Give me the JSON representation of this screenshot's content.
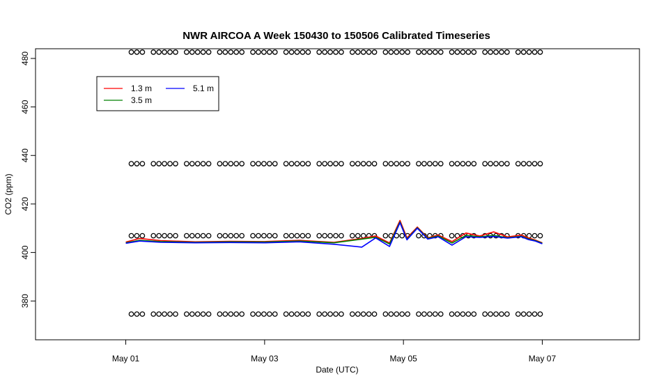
{
  "chart_data": {
    "type": "line",
    "title": "NWR AIRCOA A  Week 150430 to 150506  Calibrated Timeseries",
    "xlabel": "Date (UTC)",
    "ylabel": "CO2 (ppm)",
    "x_unit": "days from May 01 00:00 UTC",
    "xlim": [
      -1.3,
      7.4
    ],
    "ylim": [
      364,
      484
    ],
    "x_ticks": [
      {
        "value": 0,
        "label": "May 01"
      },
      {
        "value": 2,
        "label": "May 03"
      },
      {
        "value": 4,
        "label": "May 05"
      },
      {
        "value": 6,
        "label": "May 07"
      }
    ],
    "y_ticks": [
      {
        "value": 380,
        "label": "380"
      },
      {
        "value": 400,
        "label": "400"
      },
      {
        "value": 420,
        "label": "420"
      },
      {
        "value": 440,
        "label": "440"
      },
      {
        "value": 460,
        "label": "460"
      },
      {
        "value": 480,
        "label": "480"
      }
    ],
    "grid": false,
    "legend": {
      "position": "top-left",
      "columns": 2
    },
    "series": [
      {
        "name": "1.3 m",
        "color": "#ff0000",
        "x": [
          0.0,
          0.2,
          0.5,
          1.0,
          1.5,
          2.0,
          2.5,
          3.0,
          3.4,
          3.6,
          3.8,
          3.95,
          4.05,
          4.2,
          4.35,
          4.5,
          4.7,
          4.9,
          5.1,
          5.3,
          5.5,
          5.7,
          5.8,
          5.9,
          6.0
        ],
        "values": [
          404.3,
          405.8,
          404.9,
          404.4,
          404.6,
          404.5,
          405.0,
          404.2,
          405.8,
          406.8,
          403.9,
          413.2,
          406.0,
          410.5,
          406.0,
          407.2,
          404.5,
          408.0,
          406.8,
          408.5,
          406.4,
          407.2,
          406.0,
          405.1,
          404.0
        ]
      },
      {
        "name": "3.5 m",
        "color": "#008000",
        "x": [
          0.0,
          0.2,
          0.5,
          1.0,
          1.5,
          2.0,
          2.5,
          3.0,
          3.4,
          3.6,
          3.8,
          3.95,
          4.05,
          4.2,
          4.35,
          4.5,
          4.7,
          4.9,
          5.1,
          5.3,
          5.5,
          5.7,
          5.8,
          5.9,
          6.0
        ],
        "values": [
          404.0,
          405.0,
          404.5,
          404.2,
          404.4,
          404.3,
          404.7,
          404.0,
          405.5,
          406.3,
          403.5,
          412.6,
          405.5,
          410.2,
          405.8,
          406.8,
          403.9,
          407.0,
          406.5,
          407.0,
          406.1,
          406.7,
          405.6,
          404.9,
          403.8
        ]
      },
      {
        "name": "5.1 m",
        "color": "#0000ff",
        "x": [
          0.0,
          0.2,
          0.5,
          1.0,
          1.5,
          2.0,
          2.5,
          3.0,
          3.4,
          3.6,
          3.8,
          3.95,
          4.05,
          4.2,
          4.35,
          4.5,
          4.7,
          4.9,
          5.1,
          5.3,
          5.5,
          5.7,
          5.8,
          5.9,
          6.0
        ],
        "values": [
          403.8,
          404.7,
          404.2,
          404.0,
          404.1,
          404.0,
          404.4,
          403.4,
          402.2,
          406.0,
          402.5,
          412.3,
          405.2,
          410.0,
          405.5,
          406.5,
          403.0,
          406.5,
          406.2,
          406.6,
          405.9,
          406.5,
          405.3,
          404.7,
          403.6
        ]
      }
    ],
    "calibration_markers": {
      "levels": [
        482.6,
        436.6,
        406.9,
        374.6
      ],
      "x_start": 0.08,
      "x_end": 5.97,
      "count": 75,
      "marker": "open-circle",
      "color": "#000000"
    }
  }
}
